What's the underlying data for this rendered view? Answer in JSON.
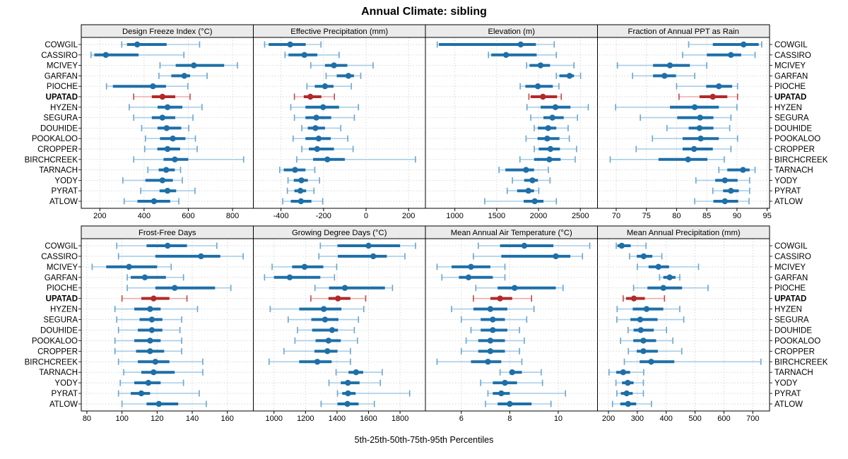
{
  "title": "Annual Climate: sibling",
  "caption": "5th-25th-50th-75th-95th Percentiles",
  "percentile_labels": [
    "5th",
    "25th",
    "50th",
    "75th",
    "95th"
  ],
  "stations": [
    "COWGIL",
    "CASSIRO",
    "MCIVEY",
    "GARFAN",
    "PIOCHE",
    "UPATAD",
    "HYZEN",
    "SEGURA",
    "DOUHIDE",
    "POOKALOO",
    "CROPPER",
    "BIRCHCREEK",
    "TARNACH",
    "YODY",
    "PYRAT",
    "ATLOW"
  ],
  "highlight_station": "UPATAD",
  "colors": {
    "normal": "#1d6fa8",
    "normal_light": "#a9cde6",
    "normal_cap": "#69a6cf",
    "highlight": "#b12a2a",
    "highlight_light": "#e7adad",
    "highlight_cap": "#c04848",
    "header_bg": "#ebebeb",
    "grid": "#d4d4d4",
    "border": "#000000",
    "text": "#000000"
  },
  "chart_data": [
    {
      "type": "dotplot-interval",
      "title": "Design Freeze Index (°C)",
      "grid_row": 0,
      "grid_col": 0,
      "axis": {
        "min": 116,
        "max": 894,
        "ticks": [
          200,
          400,
          600,
          800
        ]
      },
      "values": [
        [
          299,
          323,
          369,
          502,
          651
        ],
        [
          160,
          175,
          227,
          375,
          580
        ],
        [
          472,
          543,
          625,
          762,
          822
        ],
        [
          467,
          523,
          582,
          608,
          685
        ],
        [
          230,
          259,
          440,
          499,
          598
        ],
        [
          353,
          435,
          483,
          541,
          608
        ],
        [
          333,
          461,
          506,
          573,
          662
        ],
        [
          353,
          435,
          483,
          541,
          621
        ],
        [
          389,
          461,
          502,
          568,
          602
        ],
        [
          406,
          472,
          530,
          587,
          632
        ],
        [
          403,
          460,
          506,
          563,
          640
        ],
        [
          353,
          488,
          539,
          600,
          850
        ],
        [
          417,
          466,
          500,
          539,
          565
        ],
        [
          304,
          406,
          483,
          530,
          573
        ],
        [
          385,
          470,
          506,
          545,
          630
        ],
        [
          310,
          370,
          445,
          518,
          557
        ]
      ]
    },
    {
      "type": "dotplot-interval",
      "title": "Effective Precipitation (mm)",
      "grid_row": 0,
      "grid_col": 1,
      "axis": {
        "min": -530,
        "max": 279,
        "ticks": [
          -400,
          -200,
          0,
          200
        ]
      },
      "values": [
        [
          -477,
          -458,
          -357,
          -284,
          -212
        ],
        [
          -381,
          -365,
          -290,
          -229,
          -127
        ],
        [
          -260,
          -193,
          -151,
          -88,
          33
        ],
        [
          -188,
          -138,
          -83,
          -57,
          -25
        ],
        [
          -278,
          -241,
          -193,
          -153,
          -69
        ],
        [
          -337,
          -293,
          -262,
          -210,
          -149
        ],
        [
          -354,
          -285,
          -202,
          -127,
          -36
        ],
        [
          -337,
          -285,
          -234,
          -164,
          -55
        ],
        [
          -302,
          -274,
          -238,
          -193,
          -119
        ],
        [
          -343,
          -285,
          -223,
          -166,
          -86
        ],
        [
          -302,
          -269,
          -230,
          -151,
          -61
        ],
        [
          -326,
          -249,
          -182,
          -100,
          232
        ],
        [
          -406,
          -387,
          -334,
          -285,
          -241
        ],
        [
          -367,
          -340,
          -304,
          -274,
          -219
        ],
        [
          -370,
          -337,
          -309,
          -282,
          -245
        ],
        [
          -392,
          -354,
          -306,
          -257,
          -204
        ]
      ]
    },
    {
      "type": "dotplot-interval",
      "title": "Elevation (m)",
      "grid_row": 0,
      "grid_col": 2,
      "axis": {
        "min": 648,
        "max": 2705,
        "ticks": [
          1000,
          1500,
          2000,
          2500
        ]
      },
      "values": [
        [
          789,
          809,
          1787,
          1969,
          2188
        ],
        [
          1402,
          1435,
          1612,
          1978,
          2213
        ],
        [
          1857,
          1893,
          2025,
          2138,
          2424
        ],
        [
          2213,
          2250,
          2371,
          2424,
          2503
        ],
        [
          1781,
          1843,
          1992,
          2171,
          2244
        ],
        [
          1885,
          1907,
          2053,
          2222,
          2272
        ],
        [
          1862,
          2025,
          2202,
          2382,
          2595
        ],
        [
          1907,
          2059,
          2166,
          2301,
          2466
        ],
        [
          1949,
          1992,
          2115,
          2213,
          2354
        ],
        [
          1851,
          1989,
          2104,
          2250,
          2368
        ],
        [
          1949,
          2003,
          2143,
          2256,
          2455
        ],
        [
          1778,
          1947,
          2129,
          2264,
          2438
        ],
        [
          1528,
          1604,
          1851,
          1947,
          2118
        ],
        [
          1688,
          1829,
          1927,
          1992,
          2138
        ],
        [
          1626,
          1744,
          1879,
          1947,
          2003
        ],
        [
          1357,
          1823,
          1955,
          2059,
          2213
        ]
      ]
    },
    {
      "type": "dotplot-interval",
      "title": "Fraction of Annual PPT as Rain",
      "grid_row": 0,
      "grid_col": 3,
      "axis": {
        "min": 66.9,
        "max": 95.4,
        "ticks": [
          70,
          75,
          80,
          85,
          90,
          95
        ]
      },
      "values": [
        [
          82,
          86,
          91.1,
          93.6,
          94.1
        ],
        [
          81,
          85,
          89,
          90.7,
          93
        ],
        [
          70.2,
          76.1,
          78.9,
          82.2,
          85
        ],
        [
          72.7,
          76.1,
          78,
          79.9,
          83
        ],
        [
          80,
          84.9,
          87,
          89.2,
          90.1
        ],
        [
          80.4,
          83.8,
          86,
          88.4,
          90.1
        ],
        [
          69.9,
          78.9,
          83,
          87,
          90
        ],
        [
          74,
          80.1,
          83.9,
          86.1,
          89
        ],
        [
          78.4,
          82,
          83.8,
          86.1,
          88.8
        ],
        [
          76,
          81,
          84,
          87,
          90.1
        ],
        [
          73.3,
          81,
          82.9,
          86,
          89
        ],
        [
          69,
          77,
          81.9,
          85.1,
          87.9
        ],
        [
          87,
          88.4,
          91,
          92.1,
          93
        ],
        [
          83.2,
          86.4,
          88,
          90.1,
          92.1
        ],
        [
          86,
          87.7,
          89,
          90.3,
          92.1
        ],
        [
          83,
          86.1,
          88,
          90.2,
          92
        ]
      ]
    },
    {
      "type": "dotplot-interval",
      "title": "Frost-Free Days",
      "grid_row": 1,
      "grid_col": 0,
      "axis": {
        "min": 76.8,
        "max": 174.8,
        "ticks": [
          80,
          100,
          120,
          140,
          160
        ]
      },
      "values": [
        [
          97,
          114,
          126,
          137,
          154
        ],
        [
          98,
          119,
          145,
          156,
          169
        ],
        [
          83,
          91,
          104,
          120,
          128
        ],
        [
          103,
          105,
          113,
          125,
          135
        ],
        [
          103,
          119,
          130,
          153,
          162
        ],
        [
          100,
          111,
          118,
          127,
          137
        ],
        [
          96,
          107,
          116,
          122,
          143
        ],
        [
          97,
          110,
          117,
          123,
          134
        ],
        [
          98,
          109,
          117,
          123,
          133
        ],
        [
          96,
          107,
          116,
          122,
          134
        ],
        [
          96,
          108,
          116,
          124,
          134
        ],
        [
          98,
          109,
          119,
          127,
          146
        ],
        [
          101,
          111,
          118,
          130,
          146
        ],
        [
          99,
          107,
          115,
          122,
          135
        ],
        [
          98,
          105,
          111,
          116,
          144
        ],
        [
          100,
          114,
          121,
          132,
          148
        ]
      ]
    },
    {
      "type": "dotplot-interval",
      "title": "Growing Degree Days (°C)",
      "grid_row": 1,
      "grid_col": 1,
      "axis": {
        "min": 869,
        "max": 1961,
        "ticks": [
          1000,
          1200,
          1400,
          1600,
          1800
        ]
      },
      "values": [
        [
          1294,
          1403,
          1600,
          1800,
          1898
        ],
        [
          1285,
          1405,
          1630,
          1716,
          1831
        ],
        [
          988,
          1115,
          1194,
          1313,
          1398
        ],
        [
          940,
          1000,
          1100,
          1294,
          1384
        ],
        [
          1260,
          1349,
          1450,
          1704,
          1752
        ],
        [
          1234,
          1346,
          1406,
          1485,
          1582
        ],
        [
          976,
          1160,
          1316,
          1428,
          1570
        ],
        [
          1090,
          1237,
          1324,
          1409,
          1536
        ],
        [
          1149,
          1242,
          1369,
          1406,
          1510
        ],
        [
          1133,
          1264,
          1346,
          1424,
          1530
        ],
        [
          1063,
          1257,
          1339,
          1403,
          1485
        ],
        [
          969,
          1160,
          1275,
          1366,
          1485
        ],
        [
          1394,
          1473,
          1521,
          1566,
          1687
        ],
        [
          1349,
          1424,
          1469,
          1543,
          1675
        ],
        [
          1403,
          1433,
          1470,
          1518,
          1861
        ],
        [
          1299,
          1403,
          1466,
          1537,
          1637
        ]
      ]
    },
    {
      "type": "dotplot-interval",
      "title": "Mean Annual Air Temperature (°C)",
      "grid_row": 1,
      "grid_col": 2,
      "axis": {
        "min": 4.52,
        "max": 11.62,
        "ticks": [
          6,
          8,
          10
        ]
      },
      "values": [
        [
          6.7,
          7.6,
          8.6,
          9.8,
          11.3
        ],
        [
          6.5,
          7.65,
          9.9,
          10.5,
          11.0
        ],
        [
          5.0,
          5.6,
          6.4,
          7.2,
          7.8
        ],
        [
          5.2,
          5.9,
          6.3,
          7.3,
          7.8
        ],
        [
          6.6,
          7.5,
          8.2,
          9.9,
          10.2
        ],
        [
          6.5,
          7.2,
          7.6,
          8.1,
          8.9
        ],
        [
          5.6,
          6.5,
          7.2,
          7.9,
          9.0
        ],
        [
          6.0,
          6.8,
          7.3,
          7.8,
          8.7
        ],
        [
          6.4,
          6.8,
          7.3,
          7.9,
          8.4
        ],
        [
          6.2,
          6.7,
          7.2,
          7.8,
          8.6
        ],
        [
          6.0,
          6.7,
          7.2,
          7.8,
          8.4
        ],
        [
          5.0,
          6.4,
          7.1,
          7.65,
          8.5
        ],
        [
          7.6,
          8.0,
          8.1,
          8.5,
          9.3
        ],
        [
          6.8,
          7.3,
          7.8,
          8.3,
          9.35
        ],
        [
          7.1,
          7.3,
          7.65,
          8.0,
          10.3
        ],
        [
          7.0,
          7.5,
          8.0,
          8.9,
          9.7
        ]
      ]
    },
    {
      "type": "dotplot-interval",
      "title": "Mean Annual Precipitation (mm)",
      "grid_row": 1,
      "grid_col": 3,
      "axis": {
        "min": 162,
        "max": 758,
        "ticks": [
          200,
          300,
          400,
          500,
          600,
          700
        ]
      },
      "values": [
        [
          227,
          231,
          246,
          277,
          330
        ],
        [
          273,
          298,
          322,
          352,
          385
        ],
        [
          300,
          339,
          373,
          410,
          512
        ],
        [
          377,
          390,
          412,
          432,
          447
        ],
        [
          287,
          335,
          390,
          455,
          545
        ],
        [
          251,
          261,
          288,
          326,
          394
        ],
        [
          230,
          284,
          332,
          390,
          447
        ],
        [
          229,
          276,
          310,
          370,
          461
        ],
        [
          268,
          287,
          312,
          357,
          401
        ],
        [
          242,
          286,
          321,
          365,
          423
        ],
        [
          269,
          298,
          321,
          371,
          454
        ],
        [
          255,
          308,
          348,
          428,
          728
        ],
        [
          202,
          227,
          251,
          275,
          322
        ],
        [
          226,
          247,
          267,
          287,
          321
        ],
        [
          229,
          243,
          263,
          284,
          321
        ],
        [
          214,
          241,
          268,
          296,
          349
        ]
      ]
    }
  ]
}
